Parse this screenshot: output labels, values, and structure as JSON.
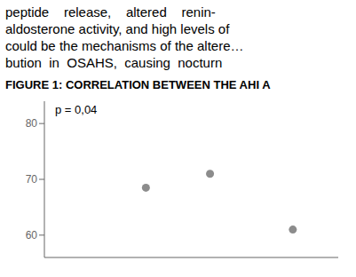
{
  "chart_data": {
    "type": "scatter",
    "subtitle": [
      "peptide    release,    altered    renin-",
      "aldosterone activity, and high levels of",
      "could be the mechanisms of the altere…",
      "bution  in  OSAHS,  causing  nocturn"
    ],
    "title": "FIGURE 1: CORRELATION BETWEEN THE AHI A",
    "annotations": [
      "p = 0,04"
    ],
    "x": [
      0.38,
      0.62,
      0.93
    ],
    "values": [
      68.5,
      71.0,
      61.0
    ],
    "color": "#8c8c8c",
    "xlim": [
      0.0,
      1.1
    ],
    "ylim": [
      56,
      84
    ],
    "yticks": [
      60,
      70,
      80
    ],
    "grid": false,
    "tick_labels": "y"
  }
}
